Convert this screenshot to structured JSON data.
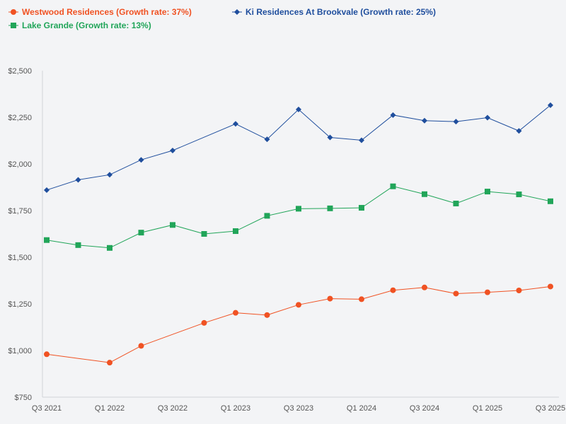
{
  "chart_data": {
    "type": "line",
    "title": "",
    "xlabel": "",
    "ylabel": "",
    "ylim": [
      750,
      2500
    ],
    "y_ticks": [
      "$2,500",
      "$2,250",
      "$2,000",
      "$1,750",
      "$1,500",
      "$1,250",
      "$1,000",
      "$750"
    ],
    "y_tick_values": [
      2500,
      2250,
      2000,
      1750,
      1500,
      1250,
      1000,
      750
    ],
    "x_tick_labels": [
      "Q3 2021",
      "Q1 2022",
      "Q3 2022",
      "Q1 2023",
      "Q3 2023",
      "Q1 2024",
      "Q3 2024",
      "Q1 2025",
      "Q3 2025"
    ],
    "x_tick_indices": [
      0,
      2,
      4,
      6,
      8,
      10,
      12,
      14,
      16
    ],
    "x_start_quarter": "Q3 2021",
    "legend_position": "top-left",
    "grid": false,
    "series": [
      {
        "name": "Westwood Residences (Growth rate: 37%)",
        "color": "#f05223",
        "marker": "circle",
        "points": [
          [
            0.0,
            980
          ],
          [
            2.0,
            935
          ],
          [
            3.0,
            1025
          ],
          [
            5.0,
            1148
          ],
          [
            6.0,
            1202
          ],
          [
            7.0,
            1190
          ],
          [
            8.0,
            1245
          ],
          [
            9.0,
            1278
          ],
          [
            10.0,
            1275
          ],
          [
            11.0,
            1323
          ],
          [
            12.0,
            1338
          ],
          [
            13.0,
            1305
          ],
          [
            14.0,
            1312
          ],
          [
            15.0,
            1322
          ],
          [
            16.0,
            1343
          ]
        ]
      },
      {
        "name": "Ki Residences At Brookvale (Growth rate: 25%)",
        "color": "#1f4e9d",
        "marker": "diamond",
        "points": [
          [
            0.0,
            1860
          ],
          [
            1.0,
            1915
          ],
          [
            2.0,
            1942
          ],
          [
            3.0,
            2022
          ],
          [
            4.0,
            2072
          ],
          [
            6.0,
            2215
          ],
          [
            7.0,
            2132
          ],
          [
            8.0,
            2292
          ],
          [
            9.0,
            2142
          ],
          [
            10.0,
            2127
          ],
          [
            11.0,
            2262
          ],
          [
            12.0,
            2232
          ],
          [
            13.0,
            2227
          ],
          [
            14.0,
            2248
          ],
          [
            15.0,
            2177
          ],
          [
            16.0,
            2315
          ]
        ]
      },
      {
        "name": "Lake Grande (Growth rate: 13%)",
        "color": "#21a559",
        "marker": "square",
        "points": [
          [
            0.0,
            1592
          ],
          [
            1.0,
            1565
          ],
          [
            2.0,
            1550
          ],
          [
            3.0,
            1632
          ],
          [
            4.0,
            1673
          ],
          [
            5.0,
            1625
          ],
          [
            6.0,
            1640
          ],
          [
            7.0,
            1722
          ],
          [
            8.0,
            1760
          ],
          [
            9.0,
            1762
          ],
          [
            10.0,
            1765
          ],
          [
            11.0,
            1880
          ],
          [
            12.0,
            1838
          ],
          [
            13.0,
            1788
          ],
          [
            14.0,
            1852
          ],
          [
            15.0,
            1837
          ],
          [
            16.0,
            1800
          ]
        ]
      }
    ]
  }
}
